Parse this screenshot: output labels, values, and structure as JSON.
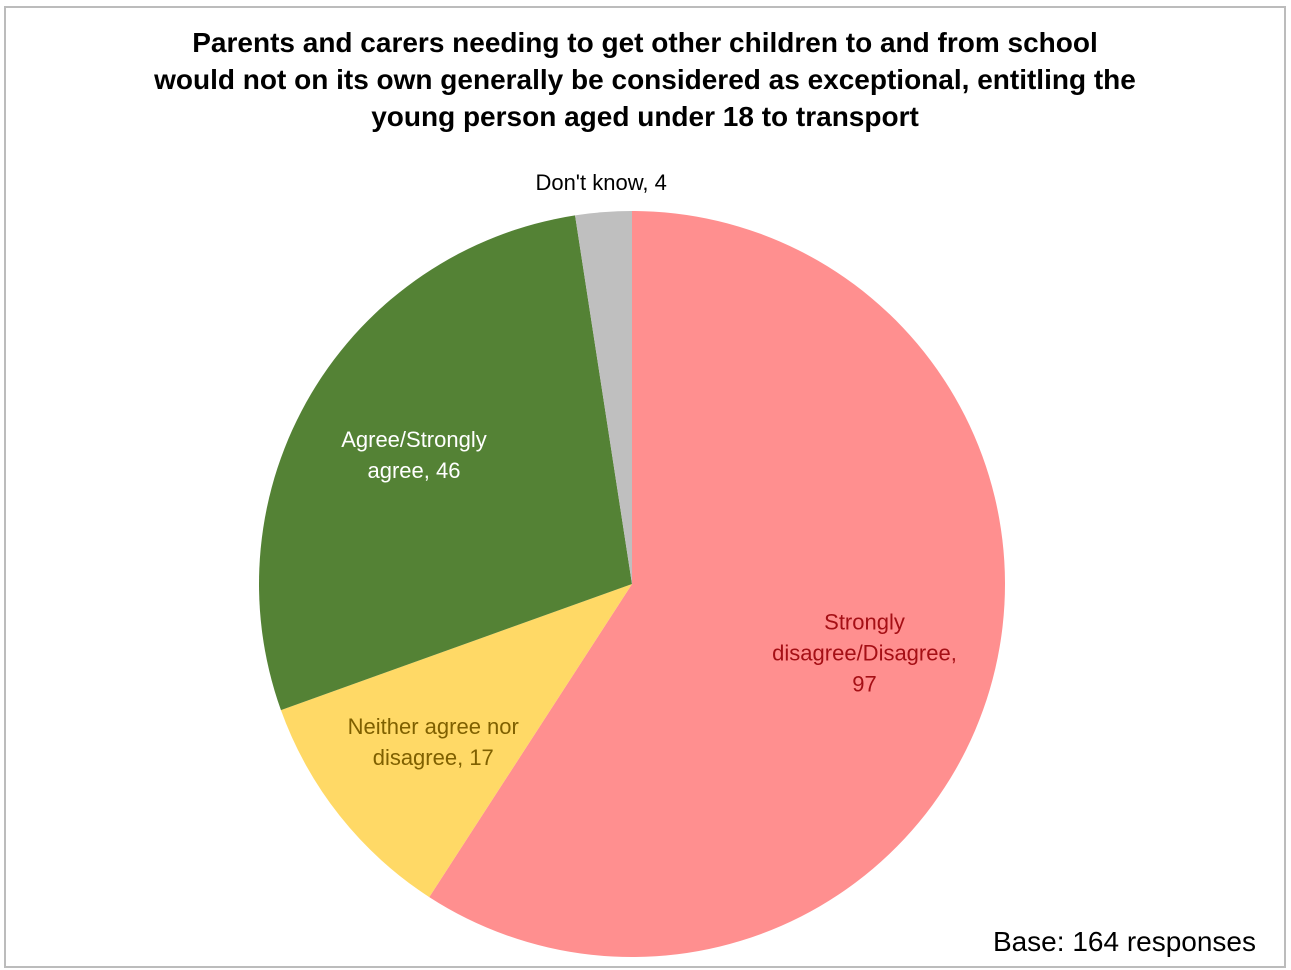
{
  "chart_data": {
    "type": "pie",
    "title_lines": [
      "Parents and carers needing to get other children to and from school",
      "would not on its own generally be considered as exceptional, entitling the",
      "young person aged under 18 to transport"
    ],
    "slices": [
      {
        "category": "Strongly disagree/Disagree",
        "value": 97,
        "color": "#ff8f8f",
        "label_color": "#a50f15",
        "label_lines": [
          "Strongly",
          "disagree/Disagree,",
          "97"
        ]
      },
      {
        "category": "Neither agree nor disagree",
        "value": 17,
        "color": "#ffd966",
        "label_color": "#7f6000",
        "label_lines": [
          "Neither agree nor",
          "disagree, 17"
        ]
      },
      {
        "category": "Agree/Strongly agree",
        "value": 46,
        "color": "#548235",
        "label_color": "#ffffff",
        "label_lines": [
          "Agree/Strongly",
          "agree, 46"
        ]
      },
      {
        "category": "Don't know",
        "value": 4,
        "color": "#bfbfbf",
        "label_color": "#000000",
        "label_lines": [
          "Don't know, 4"
        ]
      }
    ],
    "base_note": "Base: 164 responses"
  }
}
